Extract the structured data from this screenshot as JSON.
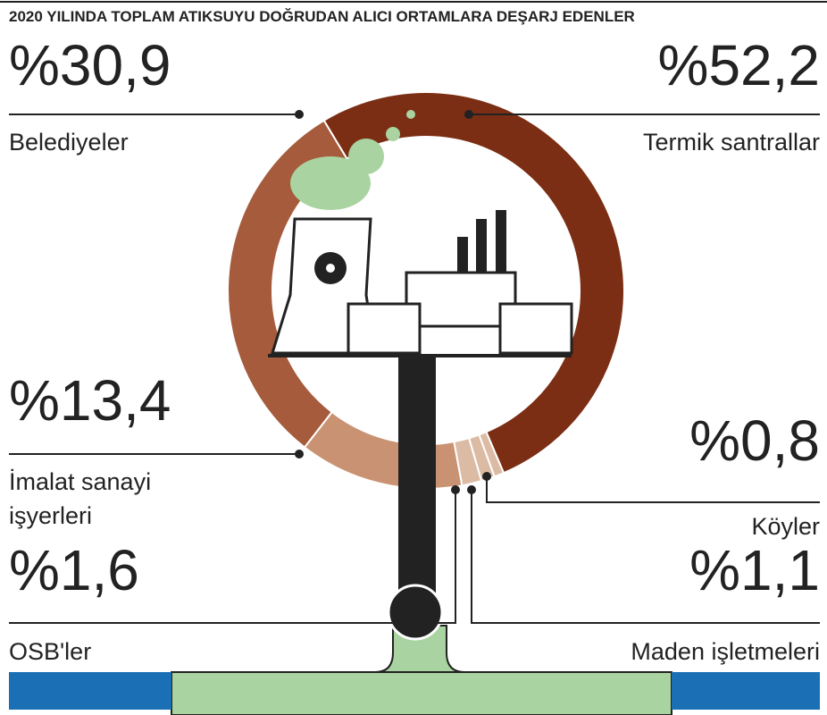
{
  "chart_data": {
    "type": "donut",
    "title": "2020 YILINDA TOPLAM ATIKSUYU DOĞRUDAN ALICI ORTAMLARA DEŞARJ EDENLER",
    "categories": [
      "Termik santrallar",
      "Köyler",
      "Maden işletmeleri",
      "OSB'ler",
      "İmalat sanayi işyerleri",
      "Belediyeler"
    ],
    "values": [
      52.2,
      0.8,
      1.1,
      1.6,
      13.4,
      30.9
    ],
    "value_labels": [
      "%52,2",
      "%0,8",
      "%1,1",
      "%1,6",
      "%13,4",
      "%30,9"
    ],
    "colors": [
      "#7b2e14",
      "#dcbba5",
      "#dcbba5",
      "#dcbba5",
      "#c99272",
      "#a55b3c"
    ]
  }
}
